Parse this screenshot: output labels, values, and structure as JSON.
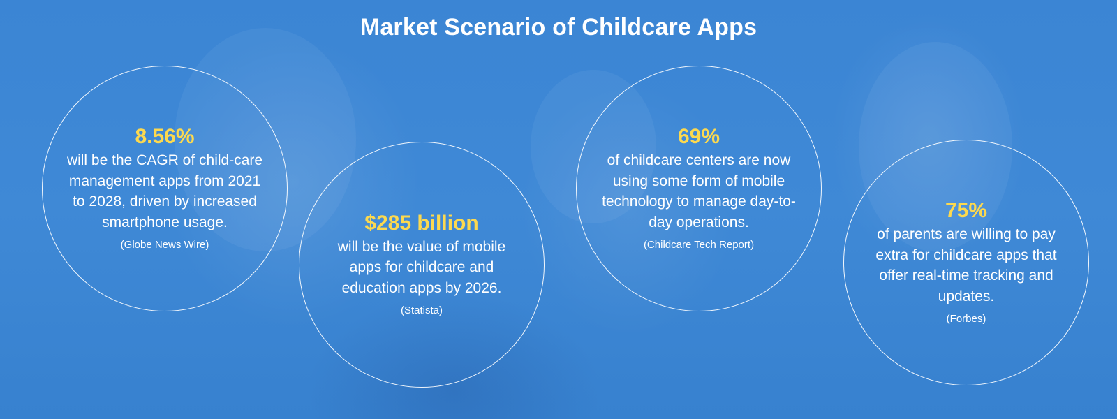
{
  "title": "Market Scenario of Childcare Apps",
  "stats": [
    {
      "value": "8.56%",
      "description": "will be the CAGR of child-care management apps from 2021 to 2028, driven by increased smartphone usage.",
      "source": "(Globe News Wire)"
    },
    {
      "value": "$285 billion",
      "description": "will be the value of mobile apps for childcare and education apps by 2026.",
      "source": "(Statista)"
    },
    {
      "value": "69%",
      "description": "of childcare centers are now using some form of mobile technology to manage day-to-day operations.",
      "source": "(Childcare Tech Report)"
    },
    {
      "value": "75%",
      "description": "of parents are willing to pay extra for childcare apps that offer real-time tracking and updates.",
      "source": "(Forbes)"
    }
  ],
  "colors": {
    "background": "#3d86d3",
    "accent": "#fcd94f",
    "text": "#ffffff"
  }
}
